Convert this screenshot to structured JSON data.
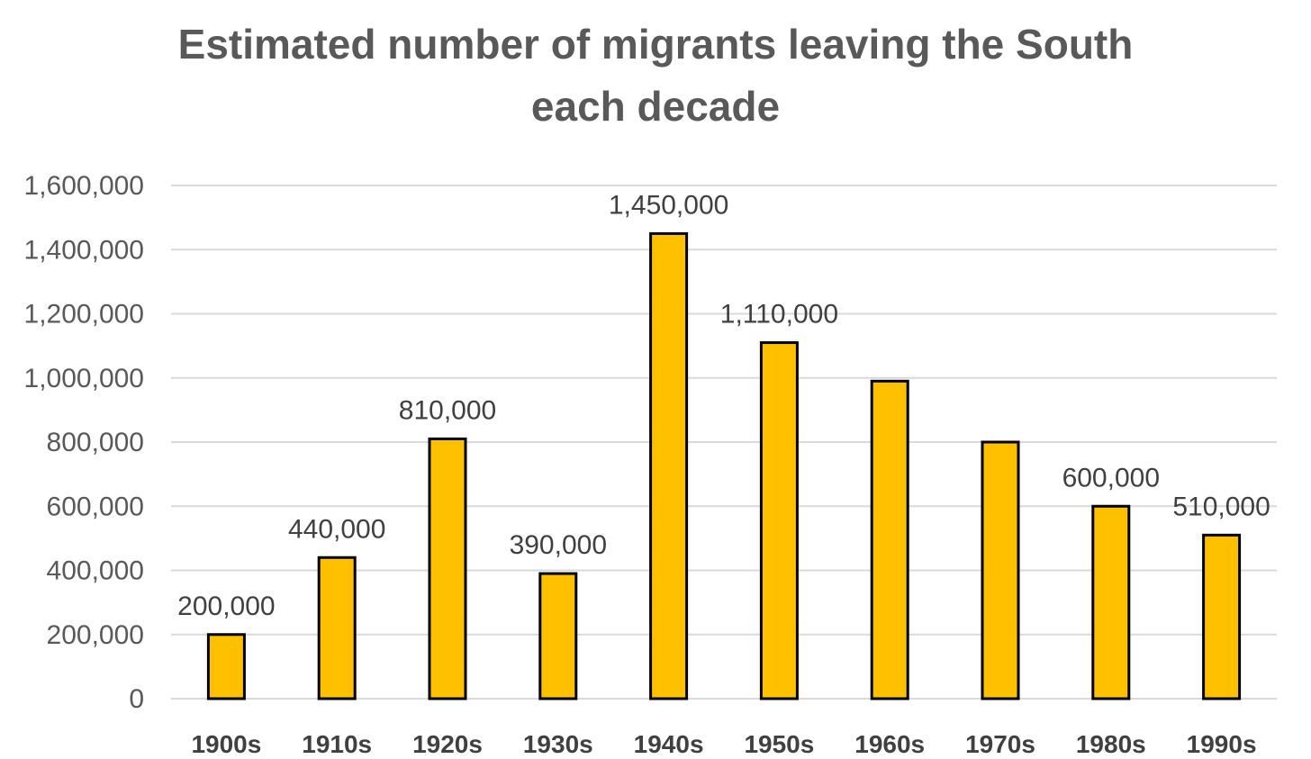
{
  "chart_data": {
    "type": "bar",
    "title_lines": [
      "Estimated number of migrants leaving the South",
      "each decade"
    ],
    "categories": [
      "1900s",
      "1910s",
      "1920s",
      "1930s",
      "1940s",
      "1950s",
      "1960s",
      "1970s",
      "1980s",
      "1990s"
    ],
    "values": [
      200000,
      440000,
      810000,
      390000,
      1450000,
      1110000,
      990000,
      800000,
      600000,
      510000
    ],
    "data_labels": [
      "200,000",
      "440,000",
      "810,000",
      "390,000",
      "1,450,000",
      "1,110,000",
      "",
      "",
      "600,000",
      "510,000"
    ],
    "y_ticks": [
      "0",
      "200,000",
      "400,000",
      "600,000",
      "800,000",
      "1,000,000",
      "1,200,000",
      "1,400,000",
      "1,600,000"
    ],
    "ylim": [
      0,
      1600000
    ],
    "y_step": 200000,
    "grid": true,
    "legend": "none",
    "bar_color": "#ffc000",
    "bar_outline": "#000000",
    "xlabel": "",
    "ylabel": ""
  }
}
